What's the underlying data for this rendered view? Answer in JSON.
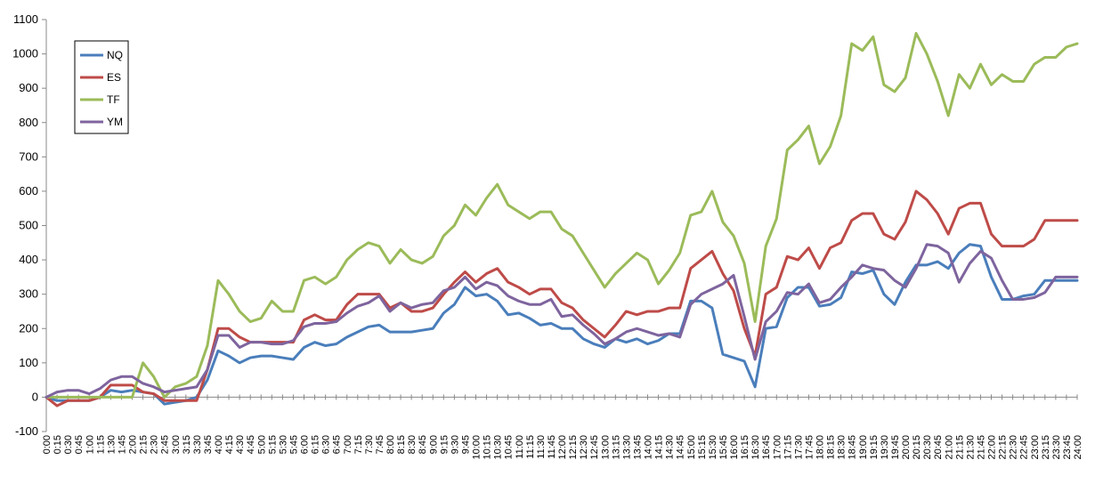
{
  "chart_data": {
    "type": "line",
    "title": "",
    "xlabel": "",
    "ylabel": "",
    "ylim": [
      -100,
      1100
    ],
    "ytick_step": 100,
    "grid": false,
    "legend_position": "top-left",
    "x": [
      "0:00",
      "0:15",
      "0:30",
      "0:45",
      "1:00",
      "1:15",
      "1:30",
      "1:45",
      "2:00",
      "2:15",
      "2:30",
      "2:45",
      "3:00",
      "3:15",
      "3:30",
      "3:45",
      "4:00",
      "4:15",
      "4:30",
      "4:45",
      "5:00",
      "5:15",
      "5:30",
      "5:45",
      "6:00",
      "6:15",
      "6:30",
      "6:45",
      "7:00",
      "7:15",
      "7:30",
      "7:45",
      "8:00",
      "8:15",
      "8:30",
      "8:45",
      "9:00",
      "9:15",
      "9:30",
      "9:45",
      "10:00",
      "10:15",
      "10:30",
      "10:45",
      "11:00",
      "11:15",
      "11:30",
      "11:45",
      "12:00",
      "12:15",
      "12:30",
      "12:45",
      "13:00",
      "13:15",
      "13:30",
      "13:45",
      "14:00",
      "14:15",
      "14:30",
      "14:45",
      "15:00",
      "15:15",
      "15:30",
      "15:45",
      "16:00",
      "16:15",
      "16:30",
      "16:45",
      "17:00",
      "17:15",
      "17:30",
      "17:45",
      "18:00",
      "18:15",
      "18:30",
      "18:45",
      "19:00",
      "19:15",
      "19:30",
      "19:45",
      "20:00",
      "20:15",
      "20:30",
      "20:45",
      "21:00",
      "21:15",
      "21:30",
      "21:45",
      "22:00",
      "22:15",
      "22:30",
      "22:45",
      "23:00",
      "23:15",
      "23:30",
      "23:45",
      "24:00"
    ],
    "series": [
      {
        "name": "NQ",
        "color": "#4a7ebb",
        "values": [
          0,
          -10,
          -10,
          -10,
          -10,
          0,
          20,
          15,
          20,
          15,
          10,
          -20,
          -15,
          -10,
          0,
          50,
          135,
          120,
          100,
          115,
          120,
          120,
          115,
          110,
          145,
          160,
          150,
          155,
          175,
          190,
          205,
          210,
          190,
          190,
          190,
          195,
          200,
          245,
          270,
          320,
          295,
          300,
          280,
          240,
          245,
          230,
          210,
          215,
          200,
          200,
          170,
          155,
          145,
          170,
          160,
          170,
          155,
          165,
          185,
          185,
          280,
          280,
          260,
          125,
          115,
          105,
          30,
          200,
          205,
          290,
          320,
          320,
          265,
          270,
          290,
          365,
          360,
          370,
          300,
          270,
          335,
          385,
          385,
          395,
          375,
          420,
          445,
          440,
          350,
          285,
          285,
          295,
          300,
          340,
          340,
          340,
          340
        ]
      },
      {
        "name": "ES",
        "color": "#be4b48",
        "values": [
          0,
          -25,
          -10,
          -10,
          -10,
          0,
          35,
          35,
          35,
          15,
          10,
          -10,
          -10,
          -10,
          -10,
          80,
          200,
          200,
          175,
          160,
          160,
          160,
          160,
          160,
          225,
          240,
          225,
          225,
          270,
          300,
          300,
          300,
          260,
          275,
          250,
          250,
          260,
          300,
          335,
          365,
          335,
          360,
          375,
          335,
          320,
          300,
          315,
          315,
          275,
          260,
          225,
          200,
          175,
          210,
          250,
          240,
          250,
          250,
          260,
          260,
          375,
          400,
          425,
          360,
          310,
          200,
          120,
          300,
          320,
          410,
          400,
          435,
          375,
          435,
          450,
          515,
          535,
          535,
          475,
          460,
          510,
          600,
          575,
          535,
          475,
          550,
          565,
          565,
          475,
          440,
          440,
          440,
          460,
          515,
          515,
          515,
          515
        ]
      },
      {
        "name": "TF",
        "color": "#9bbb59",
        "values": [
          0,
          0,
          0,
          0,
          0,
          0,
          0,
          0,
          0,
          100,
          60,
          0,
          30,
          40,
          60,
          150,
          340,
          300,
          250,
          220,
          230,
          280,
          250,
          250,
          340,
          350,
          330,
          350,
          400,
          430,
          450,
          440,
          390,
          430,
          400,
          390,
          410,
          470,
          500,
          560,
          530,
          580,
          620,
          560,
          540,
          520,
          540,
          540,
          490,
          470,
          420,
          370,
          320,
          360,
          390,
          420,
          400,
          330,
          370,
          420,
          530,
          540,
          600,
          510,
          470,
          390,
          220,
          440,
          520,
          720,
          750,
          790,
          680,
          730,
          820,
          1030,
          1010,
          1050,
          910,
          890,
          930,
          1060,
          1000,
          920,
          820,
          940,
          900,
          970,
          910,
          940,
          920,
          920,
          970,
          990,
          990,
          1020,
          1030
        ]
      },
      {
        "name": "YM",
        "color": "#7e649e",
        "values": [
          0,
          15,
          20,
          20,
          10,
          25,
          50,
          60,
          60,
          40,
          30,
          15,
          20,
          25,
          30,
          80,
          180,
          180,
          145,
          160,
          160,
          155,
          155,
          165,
          205,
          215,
          215,
          220,
          245,
          265,
          275,
          295,
          250,
          275,
          260,
          270,
          275,
          310,
          320,
          350,
          315,
          335,
          325,
          295,
          280,
          270,
          270,
          285,
          235,
          240,
          210,
          185,
          155,
          170,
          190,
          200,
          190,
          180,
          185,
          175,
          270,
          300,
          315,
          330,
          355,
          235,
          110,
          220,
          250,
          305,
          300,
          330,
          275,
          285,
          320,
          350,
          385,
          375,
          370,
          340,
          320,
          375,
          445,
          440,
          420,
          335,
          390,
          425,
          405,
          340,
          285,
          285,
          290,
          305,
          350,
          350,
          350
        ]
      }
    ]
  }
}
